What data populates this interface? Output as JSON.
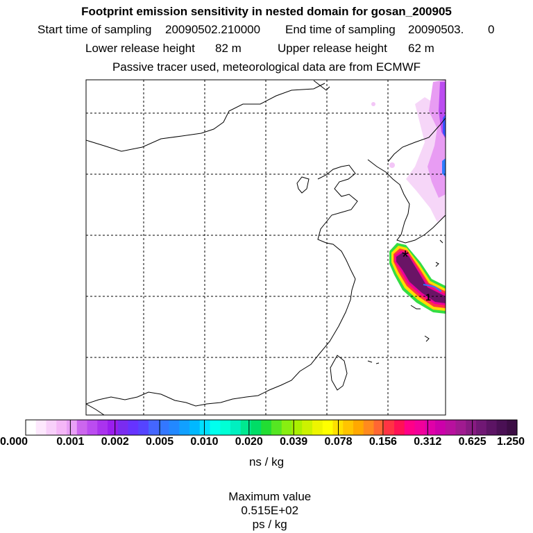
{
  "title": "Footprint emission sensitivity in nested domain for gosan_200905",
  "sampling": {
    "start_label": "Start time of sampling",
    "start_value": "20090502.210000",
    "end_label": "End time of sampling",
    "end_value": "20090503.",
    "end_suffix": "0"
  },
  "release": {
    "lower_label": "Lower release height",
    "lower_value": "82 m",
    "upper_label": "Upper release height",
    "upper_value": "62 m"
  },
  "tracer_note": "Passive tracer used, meteorological data are from ECMWF",
  "map": {
    "receptor_marker": "*",
    "contour_label": "1"
  },
  "colorbar": {
    "labels": [
      "0.000",
      "0.001",
      "0.002",
      "0.005",
      "0.010",
      "0.020",
      "0.039",
      "0.078",
      "0.156",
      "0.312",
      "0.625",
      "1.250"
    ],
    "colors": [
      "#ffffff",
      "#fde8fd",
      "#f8d0fa",
      "#f4b7f7",
      "#e9a0f6",
      "#cc66ee",
      "#bb4cf0",
      "#aa33ee",
      "#9a1eee",
      "#7a2cf0",
      "#6633ff",
      "#5544ff",
      "#4466ff",
      "#3377ff",
      "#2288ff",
      "#11a0ff",
      "#00b8ff",
      "#00e0ff",
      "#00ffee",
      "#00ffd5",
      "#00f0c0",
      "#00e890",
      "#00dd66",
      "#22dd33",
      "#55e622",
      "#88ee11",
      "#aaf000",
      "#ccf200",
      "#eef500",
      "#ffff00",
      "#ffe000",
      "#ffc400",
      "#ffa800",
      "#ff8a1e",
      "#ff6633",
      "#ff3344",
      "#ff1155",
      "#ff0088",
      "#f2009a",
      "#e000a8",
      "#cc00aa",
      "#b8109e",
      "#a01a90",
      "#881a82",
      "#701874",
      "#5c1464",
      "#4a1054",
      "#3c0d44"
    ],
    "units": "ns / kg"
  },
  "max_value": {
    "label": "Maximum value",
    "value": "0.515E+02",
    "units": "ps / kg"
  }
}
